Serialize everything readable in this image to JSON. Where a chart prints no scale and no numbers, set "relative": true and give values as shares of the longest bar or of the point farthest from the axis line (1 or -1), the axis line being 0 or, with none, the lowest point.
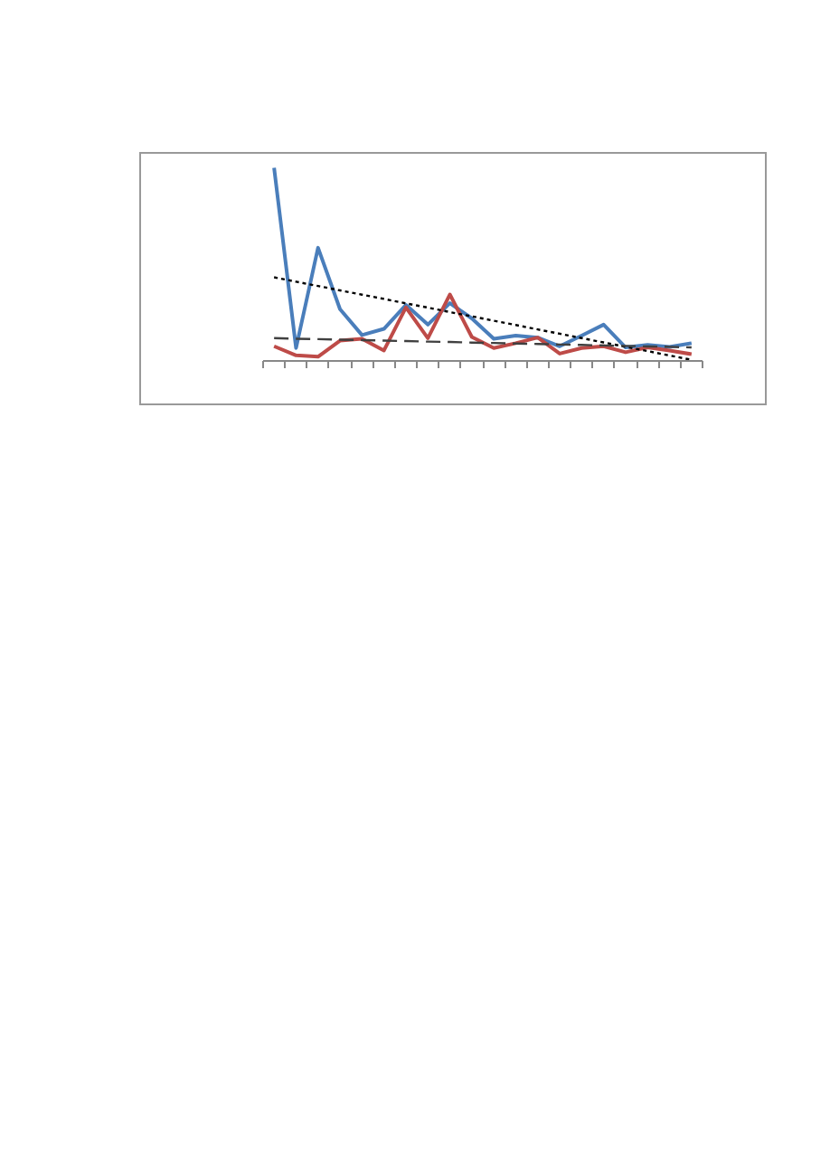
{
  "chart_data": {
    "type": "line",
    "relative": true,
    "categories": [
      null,
      null,
      null,
      null,
      null,
      null,
      null,
      null,
      null,
      null,
      null,
      null,
      null,
      null,
      null,
      null,
      null,
      null,
      null,
      null
    ],
    "grid": false,
    "marker": "none",
    "series": [
      {
        "color": "#4a7ebb",
        "line_style": "solid",
        "values": [
          1.0,
          0.067,
          0.586,
          0.268,
          0.134,
          0.166,
          0.29,
          0.188,
          0.299,
          0.22,
          0.115,
          0.131,
          0.121,
          0.076,
          0.131,
          0.188,
          0.07,
          0.083,
          0.073,
          0.092
        ]
      },
      {
        "color": "#be4b48",
        "line_style": "solid",
        "values": [
          0.076,
          0.029,
          0.022,
          0.105,
          0.115,
          0.054,
          0.277,
          0.118,
          0.344,
          0.124,
          0.067,
          0.092,
          0.121,
          0.038,
          0.067,
          0.076,
          0.045,
          0.07,
          0.054,
          0.035
        ]
      },
      {
        "color": "#000000",
        "line_style": "dotted",
        "values": [
          0.433,
          0.41,
          0.388,
          0.365,
          0.343,
          0.321,
          0.298,
          0.276,
          0.253,
          0.231,
          0.208,
          0.186,
          0.163,
          0.141,
          0.118,
          0.096,
          0.073,
          0.051,
          0.028,
          0.006
        ]
      },
      {
        "color": "#404040",
        "line_style": "dashed",
        "values": [
          0.118,
          0.115,
          0.113,
          0.11,
          0.108,
          0.105,
          0.103,
          0.1,
          0.098,
          0.095,
          0.093,
          0.09,
          0.088,
          0.085,
          0.083,
          0.08,
          0.078,
          0.075,
          0.073,
          0.07
        ]
      }
    ]
  }
}
